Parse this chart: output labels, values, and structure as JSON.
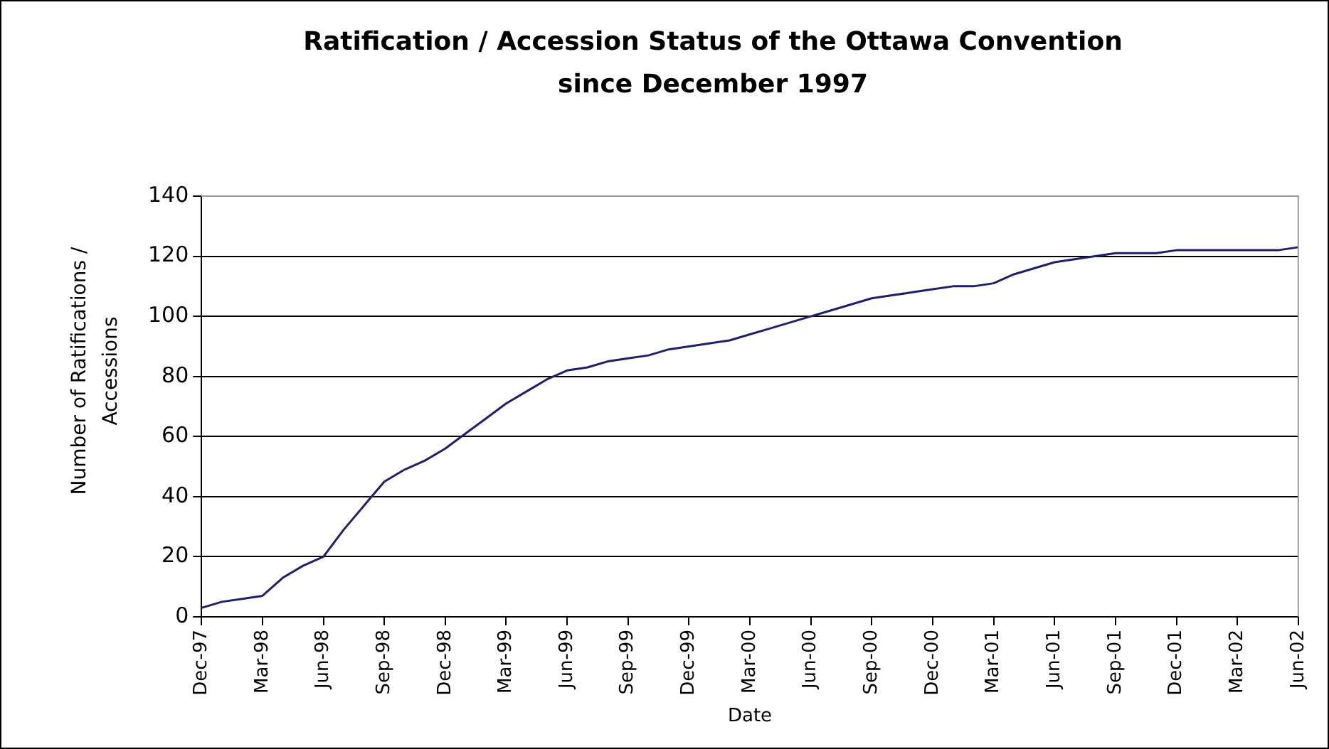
{
  "chart_data": {
    "type": "line",
    "title": "Ratification / Accession Status of the Ottawa Convention since December 1997",
    "xlabel": "Date",
    "ylabel": "Number of Ratifications / Accessions",
    "categories": [
      "Dec-97",
      null,
      null,
      "Mar-98",
      null,
      null,
      "Jun-98",
      null,
      null,
      "Sep-98",
      null,
      null,
      "Dec-98",
      null,
      null,
      "Mar-99",
      null,
      null,
      "Jun-99",
      null,
      null,
      "Sep-99",
      null,
      null,
      "Dec-99",
      null,
      null,
      "Mar-00",
      null,
      null,
      "Jun-00",
      null,
      null,
      "Sep-00",
      null,
      null,
      "Dec-00",
      null,
      null,
      "Mar-01",
      null,
      null,
      "Jun-01",
      null,
      null,
      "Sep-01",
      null,
      null,
      "Dec-01",
      null,
      null,
      "Mar-02",
      null,
      null,
      "Jun-02"
    ],
    "series": [
      {
        "color": "#1f1f6e",
        "values": [
          3,
          5,
          6,
          7,
          13,
          17,
          20,
          29,
          37,
          45,
          49,
          52,
          56,
          61,
          66,
          71,
          75,
          79,
          82,
          83,
          85,
          86,
          87,
          89,
          90,
          91,
          92,
          94,
          96,
          98,
          100,
          102,
          104,
          106,
          107,
          108,
          109,
          110,
          110,
          111,
          114,
          116,
          118,
          119,
          120,
          121,
          121,
          121,
          122,
          122,
          122,
          122,
          122,
          122,
          123
        ]
      }
    ],
    "ylim": [
      0,
      140
    ],
    "yticks": [
      0,
      20,
      40,
      60,
      80,
      100,
      120,
      140
    ],
    "grid": "y",
    "legend": false,
    "marker": "none",
    "line_style": "solid"
  }
}
